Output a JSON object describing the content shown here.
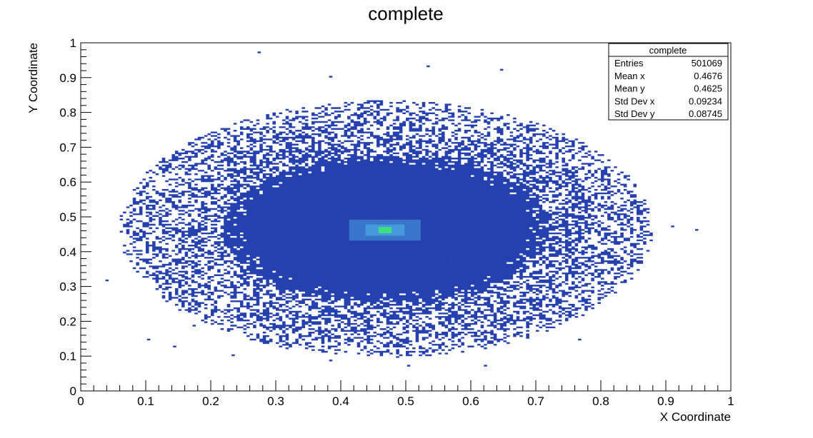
{
  "chart_data": {
    "type": "heatmap",
    "title": "complete",
    "xlabel": "X Coordinate",
    "ylabel": "Y Coordinate",
    "xlim": [
      0,
      1
    ],
    "ylim": [
      0,
      1
    ],
    "xticks": [
      "0",
      "0.1",
      "0.2",
      "0.3",
      "0.4",
      "0.5",
      "0.6",
      "0.7",
      "0.8",
      "0.9",
      "1"
    ],
    "yticks": [
      "0",
      "0.1",
      "0.2",
      "0.3",
      "0.4",
      "0.5",
      "0.6",
      "0.7",
      "0.8",
      "0.9",
      "1"
    ],
    "grid": false,
    "legend": "none",
    "colors": {
      "low": "#2541b0",
      "mid": "#4aa0e0",
      "peak": "#40e080",
      "frame": "#000000"
    },
    "distribution": {
      "center": [
        0.47,
        0.465
      ],
      "dense_core_radius": [
        0.25,
        0.21
      ],
      "outer_radius": [
        0.4,
        0.36
      ],
      "peak": [
        0.468,
        0.462
      ]
    },
    "outliers": [
      [
        0.272,
        0.975
      ],
      [
        0.532,
        0.935
      ],
      [
        0.645,
        0.925
      ],
      [
        0.382,
        0.905
      ],
      [
        0.908,
        0.475
      ],
      [
        0.945,
        0.465
      ],
      [
        0.038,
        0.32
      ],
      [
        0.172,
        0.19
      ],
      [
        0.102,
        0.15
      ],
      [
        0.142,
        0.13
      ],
      [
        0.232,
        0.105
      ],
      [
        0.382,
        0.09
      ],
      [
        0.502,
        0.075
      ],
      [
        0.62,
        0.075
      ],
      [
        0.765,
        0.15
      ]
    ],
    "stats": {
      "title": "complete",
      "rows": [
        {
          "label": "Entries",
          "value": "501069"
        },
        {
          "label": "Mean x",
          "value": "0.4676"
        },
        {
          "label": "Mean y",
          "value": "0.4625"
        },
        {
          "label": "Std Dev x",
          "value": "0.09234"
        },
        {
          "label": "Std Dev y",
          "value": "0.08745"
        }
      ]
    }
  }
}
